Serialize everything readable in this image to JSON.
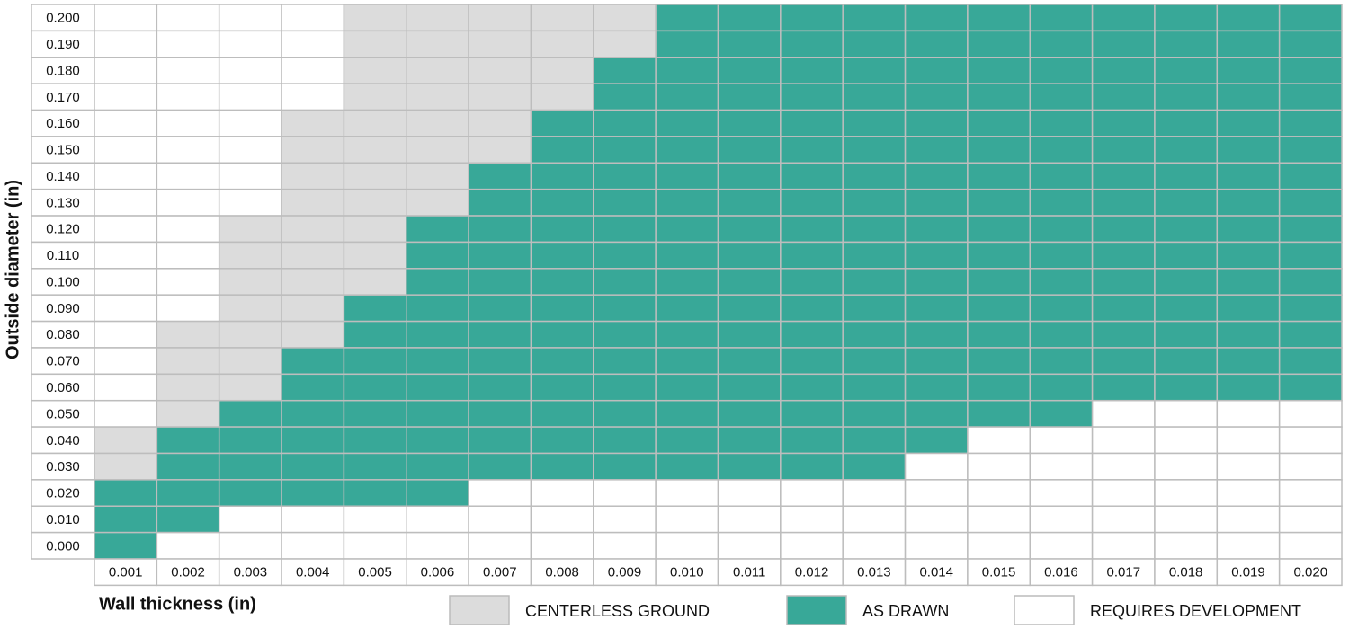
{
  "chart_data": {
    "type": "heatmap",
    "y_label": "Outside diameter (in)",
    "x_label": "Wall thickness (in)",
    "rows": [
      "0.200",
      "0.190",
      "0.180",
      "0.170",
      "0.160",
      "0.150",
      "0.140",
      "0.130",
      "0.120",
      "0.110",
      "0.100",
      "0.090",
      "0.080",
      "0.070",
      "0.060",
      "0.050",
      "0.040",
      "0.030",
      "0.020",
      "0.010",
      "0.000"
    ],
    "columns": [
      "0.001",
      "0.002",
      "0.003",
      "0.004",
      "0.005",
      "0.006",
      "0.007",
      "0.008",
      "0.009",
      "0.010",
      "0.011",
      "0.012",
      "0.013",
      "0.014",
      "0.015",
      "0.016",
      "0.017",
      "0.018",
      "0.019",
      "0.020"
    ],
    "classes": [
      {
        "name": "CENTERLESS GROUND",
        "color": "#dcdcdc"
      },
      {
        "name": "AS DRAWN",
        "color": "#38a898"
      },
      {
        "name": "REQUIRES DEVELOPMENT",
        "color": "#ffffff"
      }
    ],
    "values": [
      [
        2,
        2,
        2,
        2,
        0,
        0,
        0,
        0,
        0,
        1,
        1,
        1,
        1,
        1,
        1,
        1,
        1,
        1,
        1,
        1
      ],
      [
        2,
        2,
        2,
        2,
        0,
        0,
        0,
        0,
        0,
        1,
        1,
        1,
        1,
        1,
        1,
        1,
        1,
        1,
        1,
        1
      ],
      [
        2,
        2,
        2,
        2,
        0,
        0,
        0,
        0,
        1,
        1,
        1,
        1,
        1,
        1,
        1,
        1,
        1,
        1,
        1,
        1
      ],
      [
        2,
        2,
        2,
        2,
        0,
        0,
        0,
        0,
        1,
        1,
        1,
        1,
        1,
        1,
        1,
        1,
        1,
        1,
        1,
        1
      ],
      [
        2,
        2,
        2,
        0,
        0,
        0,
        0,
        1,
        1,
        1,
        1,
        1,
        1,
        1,
        1,
        1,
        1,
        1,
        1,
        1
      ],
      [
        2,
        2,
        2,
        0,
        0,
        0,
        0,
        1,
        1,
        1,
        1,
        1,
        1,
        1,
        1,
        1,
        1,
        1,
        1,
        1
      ],
      [
        2,
        2,
        2,
        0,
        0,
        0,
        1,
        1,
        1,
        1,
        1,
        1,
        1,
        1,
        1,
        1,
        1,
        1,
        1,
        1
      ],
      [
        2,
        2,
        2,
        0,
        0,
        0,
        1,
        1,
        1,
        1,
        1,
        1,
        1,
        1,
        1,
        1,
        1,
        1,
        1,
        1
      ],
      [
        2,
        2,
        0,
        0,
        0,
        1,
        1,
        1,
        1,
        1,
        1,
        1,
        1,
        1,
        1,
        1,
        1,
        1,
        1,
        1
      ],
      [
        2,
        2,
        0,
        0,
        0,
        1,
        1,
        1,
        1,
        1,
        1,
        1,
        1,
        1,
        1,
        1,
        1,
        1,
        1,
        1
      ],
      [
        2,
        2,
        0,
        0,
        0,
        1,
        1,
        1,
        1,
        1,
        1,
        1,
        1,
        1,
        1,
        1,
        1,
        1,
        1,
        1
      ],
      [
        2,
        2,
        0,
        0,
        1,
        1,
        1,
        1,
        1,
        1,
        1,
        1,
        1,
        1,
        1,
        1,
        1,
        1,
        1,
        1
      ],
      [
        2,
        0,
        0,
        0,
        1,
        1,
        1,
        1,
        1,
        1,
        1,
        1,
        1,
        1,
        1,
        1,
        1,
        1,
        1,
        1
      ],
      [
        2,
        0,
        0,
        1,
        1,
        1,
        1,
        1,
        1,
        1,
        1,
        1,
        1,
        1,
        1,
        1,
        1,
        1,
        1,
        1
      ],
      [
        2,
        0,
        0,
        1,
        1,
        1,
        1,
        1,
        1,
        1,
        1,
        1,
        1,
        1,
        1,
        1,
        1,
        1,
        1,
        1
      ],
      [
        2,
        0,
        1,
        1,
        1,
        1,
        1,
        1,
        1,
        1,
        1,
        1,
        1,
        1,
        1,
        1,
        2,
        2,
        2,
        2
      ],
      [
        0,
        1,
        1,
        1,
        1,
        1,
        1,
        1,
        1,
        1,
        1,
        1,
        1,
        1,
        2,
        2,
        2,
        2,
        2,
        2
      ],
      [
        0,
        1,
        1,
        1,
        1,
        1,
        1,
        1,
        1,
        1,
        1,
        1,
        1,
        2,
        2,
        2,
        2,
        2,
        2,
        2
      ],
      [
        1,
        1,
        1,
        1,
        1,
        1,
        2,
        2,
        2,
        2,
        2,
        2,
        2,
        2,
        2,
        2,
        2,
        2,
        2,
        2
      ],
      [
        1,
        1,
        2,
        2,
        2,
        2,
        2,
        2,
        2,
        2,
        2,
        2,
        2,
        2,
        2,
        2,
        2,
        2,
        2,
        2
      ],
      [
        1,
        2,
        2,
        2,
        2,
        2,
        2,
        2,
        2,
        2,
        2,
        2,
        2,
        2,
        2,
        2,
        2,
        2,
        2,
        2
      ]
    ]
  }
}
